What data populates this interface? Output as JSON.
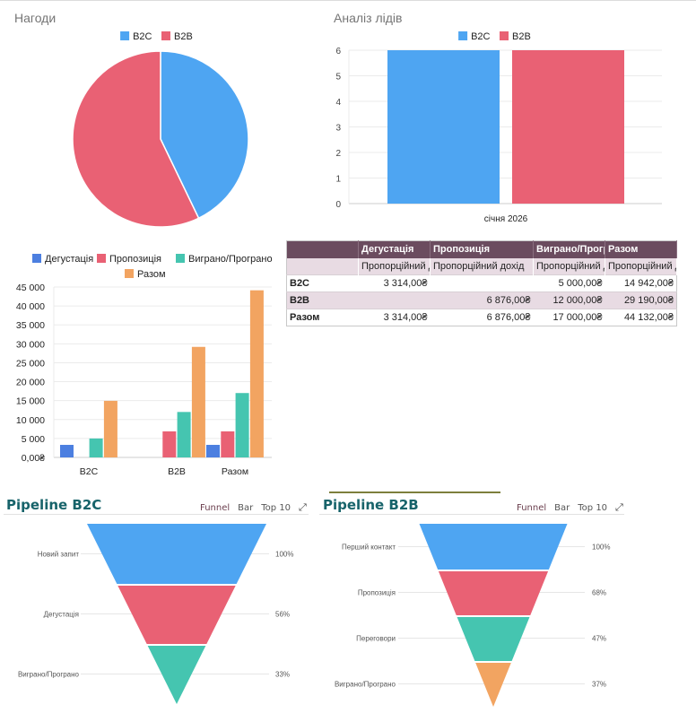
{
  "colors": {
    "blue": "#4ea5f2",
    "red": "#e96174",
    "teal": "#45c5b0",
    "orange": "#f2a461",
    "dark_blue": "#4c7fe0",
    "table_header": "#6b4c5f",
    "table_subheader": "#e8dbe3",
    "pipeline_title": "#17636a"
  },
  "chart_data": [
    {
      "id": "opportunities-pie",
      "type": "pie",
      "title": "Нагоди",
      "legend": [
        "B2C",
        "B2B"
      ],
      "legend_position": "top",
      "categories": [
        "B2C",
        "B2B"
      ],
      "values": [
        6,
        8
      ]
    },
    {
      "id": "leads-bar",
      "type": "bar",
      "title": "Аналіз лідів",
      "legend": [
        "B2C",
        "B2B"
      ],
      "legend_position": "top",
      "categories": [
        "січня 2026"
      ],
      "series": [
        {
          "name": "B2C",
          "values": [
            6
          ]
        },
        {
          "name": "B2B",
          "values": [
            6
          ]
        }
      ],
      "yticks": [
        "0",
        "1",
        "2",
        "3",
        "4",
        "5",
        "6"
      ],
      "ylim": [
        0,
        6
      ],
      "grid": true
    },
    {
      "id": "revenue-bar",
      "type": "bar",
      "title": "",
      "legend": [
        "Дегустація",
        "Пропозиція",
        "Виграно/Програно",
        "Разом"
      ],
      "legend_position": "top",
      "categories": [
        "B2C",
        "B2B",
        "Разом"
      ],
      "series": [
        {
          "name": "Дегустація",
          "values": [
            3314,
            0,
            3314
          ]
        },
        {
          "name": "Пропозиція",
          "values": [
            0,
            6876,
            6876
          ]
        },
        {
          "name": "Виграно/Програно",
          "values": [
            5000,
            12000,
            17000
          ]
        },
        {
          "name": "Разом",
          "values": [
            14942,
            29190,
            44132
          ]
        }
      ],
      "yticks": [
        "0,00₴",
        "5 000",
        "10 000",
        "15 000",
        "20 000",
        "25 000",
        "30 000",
        "35 000",
        "40 000",
        "45 000"
      ],
      "ylim": [
        0,
        45000
      ],
      "grid": true
    },
    {
      "id": "pipeline-b2c-funnel",
      "type": "funnel",
      "title": "Pipeline B2C",
      "stages": [
        "Новий запит",
        "Дегустація",
        "Виграно/Програно"
      ],
      "percent_labels": [
        "100%",
        "56%",
        "33%"
      ],
      "values": [
        100,
        56,
        33
      ]
    },
    {
      "id": "pipeline-b2b-funnel",
      "type": "funnel",
      "title": "Pipeline B2B",
      "stages": [
        "Перший контакт",
        "Пропозиція",
        "Переговори",
        "Виграно/Програно"
      ],
      "percent_labels": [
        "100%",
        "68%",
        "47%",
        "37%"
      ],
      "values": [
        100,
        68,
        47,
        37
      ]
    }
  ],
  "pivot_table": {
    "columns": [
      "",
      "Дегустація",
      "Пропозиція",
      "Виграно/Програно",
      "Разом"
    ],
    "subheaders": [
      "",
      "Пропорційний дохід",
      "Пропорційний дохід",
      "Пропорційний дохід",
      "Пропорційний дохід"
    ],
    "rows": [
      {
        "label": "B2C",
        "cells": [
          "3 314,00₴",
          "",
          "5 000,00₴",
          "14 942,00₴"
        ]
      },
      {
        "label": "B2B",
        "cells": [
          "",
          "6 876,00₴",
          "12 000,00₴",
          "29 190,00₴"
        ]
      },
      {
        "label": "Разом",
        "cells": [
          "3 314,00₴",
          "6 876,00₴",
          "17 000,00₴",
          "44 132,00₴"
        ]
      }
    ]
  },
  "pipelines": {
    "b2c": {
      "title": "Pipeline B2C",
      "views": [
        "Funnel",
        "Bar",
        "Top 10"
      ],
      "active_view": "Funnel",
      "expand_icon": "expand-icon"
    },
    "b2b": {
      "title": "Pipeline B2B",
      "views": [
        "Funnel",
        "Bar",
        "Top 10"
      ],
      "active_view": "Funnel",
      "expand_icon": "expand-icon"
    }
  }
}
